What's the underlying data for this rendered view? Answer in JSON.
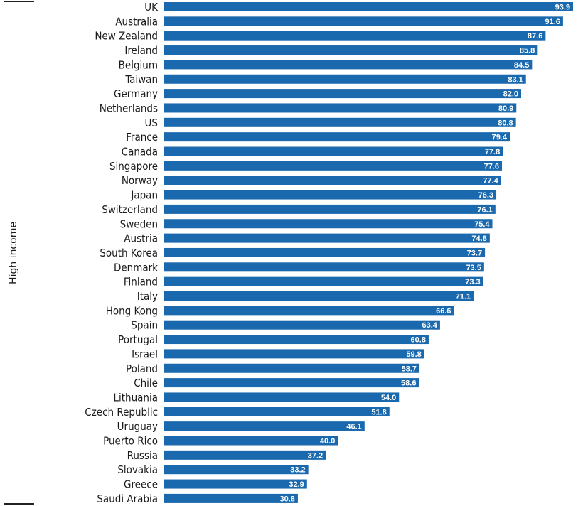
{
  "chart_data": {
    "type": "bar",
    "orientation": "horizontal",
    "group_label": "High income",
    "bar_color": "#1a68ad",
    "value_label_color": "#ffffff",
    "categories": [
      "UK",
      "Australia",
      "New Zealand",
      "Ireland",
      "Belgium",
      "Taiwan",
      "Germany",
      "Netherlands",
      "US",
      "France",
      "Canada",
      "Singapore",
      "Norway",
      "Japan",
      "Switzerland",
      "Sweden",
      "Austria",
      "South Korea",
      "Denmark",
      "Finland",
      "Italy",
      "Hong Kong",
      "Spain",
      "Portugal",
      "Israel",
      "Poland",
      "Chile",
      "Lithuania",
      "Czech Republic",
      "Uruguay",
      "Puerto Rico",
      "Russia",
      "Slovakia",
      "Greece",
      "Saudi Arabia"
    ],
    "values": [
      93.9,
      91.6,
      87.6,
      85.8,
      84.5,
      83.1,
      82.0,
      80.9,
      80.8,
      79.4,
      77.8,
      77.6,
      77.4,
      76.3,
      76.1,
      75.4,
      74.8,
      73.7,
      73.5,
      73.3,
      71.1,
      66.6,
      63.4,
      60.8,
      59.8,
      58.7,
      58.6,
      54.0,
      51.8,
      46.1,
      40.0,
      37.2,
      33.2,
      32.9,
      30.8
    ],
    "value_labels": [
      "93.9",
      "91.6",
      "87.6",
      "85.8",
      "84.5",
      "83.1",
      "82.0",
      "80.9",
      "80.8",
      "79.4",
      "77.8",
      "77.6",
      "77.4",
      "76.3",
      "76.1",
      "75.4",
      "74.8",
      "73.7",
      "73.5",
      "73.3",
      "71.1",
      "66.6",
      "63.4",
      "60.8",
      "59.8",
      "58.7",
      "58.6",
      "54.0",
      "51.8",
      "46.1",
      "40.0",
      "37.2",
      "33.2",
      "32.9",
      "30.8"
    ],
    "xlim": [
      0,
      93.9
    ],
    "grid": false,
    "legend": "none"
  }
}
